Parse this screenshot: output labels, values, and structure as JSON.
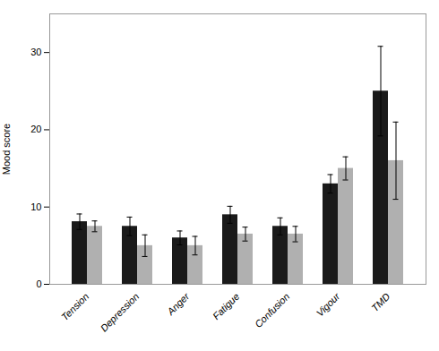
{
  "chart_data": {
    "type": "bar",
    "categories": [
      "Tension",
      "Depression",
      "Anger",
      "Fatigue",
      "Confusion",
      "Vigour",
      "TMD"
    ],
    "series": [
      {
        "color": "#1a1a1a",
        "values": [
          8.1,
          7.5,
          6.0,
          9.0,
          7.5,
          13.0,
          25.0
        ],
        "errors": [
          1.0,
          1.2,
          0.9,
          1.1,
          1.1,
          1.2,
          5.8
        ]
      },
      {
        "color": "#b0b0b0",
        "values": [
          7.5,
          5.0,
          5.0,
          6.5,
          6.5,
          15.0,
          16.0
        ],
        "errors": [
          0.7,
          1.4,
          1.2,
          0.9,
          1.0,
          1.5,
          5.0
        ]
      }
    ],
    "ylabel": "Mood score",
    "ylim": [
      0,
      35
    ],
    "yticks": [
      0,
      10,
      20,
      30
    ],
    "grid": false
  }
}
